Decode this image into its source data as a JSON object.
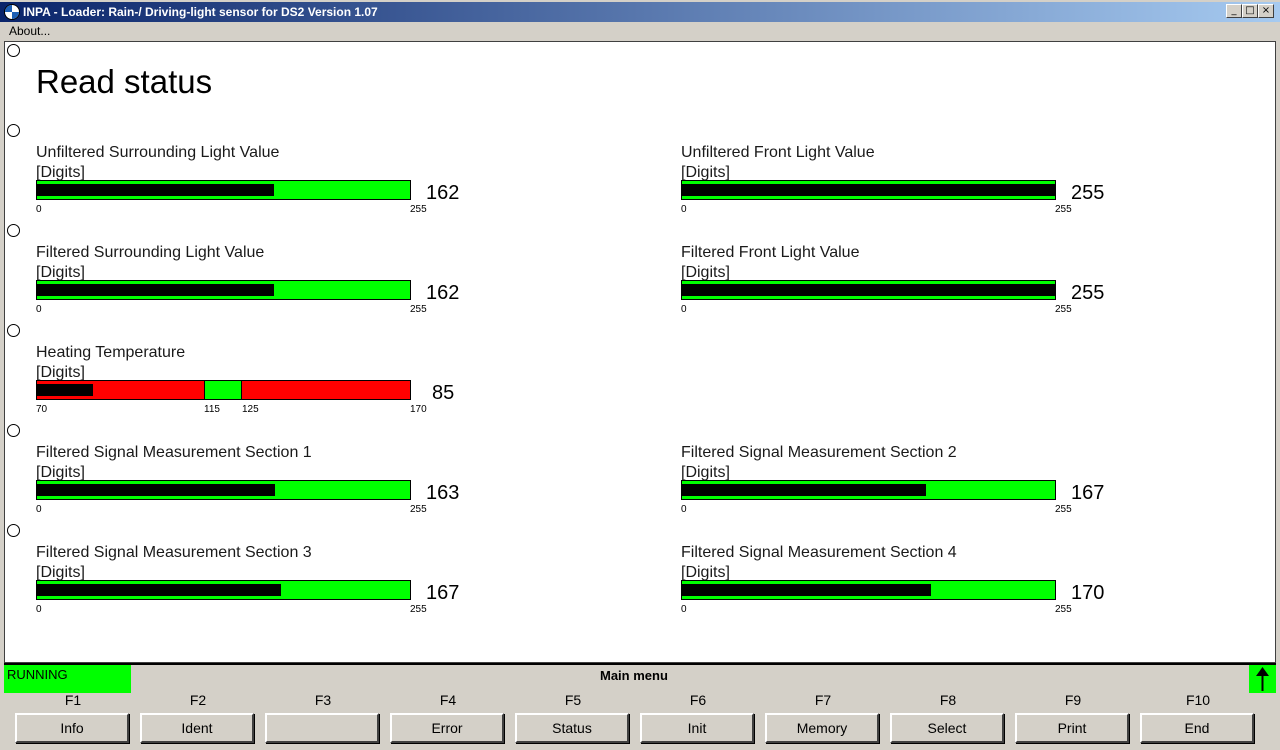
{
  "window": {
    "title": "INPA - Loader:  Rain-/ Driving-light sensor for DS2 Version 1.07",
    "minimize_glyph": "_",
    "maximize_glyph": "□",
    "close_glyph": "×"
  },
  "menu": {
    "about": "About..."
  },
  "page": {
    "title": "Read status"
  },
  "gauges": [
    {
      "label": "Unfiltered Surrounding Light Value",
      "unit": "[Digits]",
      "value": "162",
      "min": "0",
      "max": "255",
      "fraction": 0.635
    },
    {
      "label": "Unfiltered Front Light Value",
      "unit": "[Digits]",
      "value": "255",
      "min": "0",
      "max": "255",
      "fraction": 1.0
    },
    {
      "label": "Filtered Surrounding Light Value",
      "unit": "[Digits]",
      "value": "162",
      "min": "0",
      "max": "255",
      "fraction": 0.635
    },
    {
      "label": "Filtered Front Light Value",
      "unit": "[Digits]",
      "value": "255",
      "min": "0",
      "max": "255",
      "fraction": 1.0
    },
    {
      "label": "Heating Temperature",
      "unit": "[Digits]",
      "value": "85",
      "min": "70",
      "max": "170",
      "tick1": "115",
      "tick2": "125",
      "fraction": 0.15
    },
    {
      "label": "Filtered Signal Measurement Section 1",
      "unit": "[Digits]",
      "value": "163",
      "min": "0",
      "max": "255",
      "fraction": 0.639
    },
    {
      "label": "Filtered Signal Measurement Section 2",
      "unit": "[Digits]",
      "value": "167",
      "min": "0",
      "max": "255",
      "fraction": 0.655
    },
    {
      "label": "Filtered Signal Measurement Section 3",
      "unit": "[Digits]",
      "value": "167",
      "min": "0",
      "max": "255",
      "fraction": 0.655
    },
    {
      "label": "Filtered Signal Measurement Section 4",
      "unit": "[Digits]",
      "value": "170",
      "min": "0",
      "max": "255",
      "fraction": 0.667
    }
  ],
  "status": {
    "state": "RUNNING",
    "menu_name": "Main menu"
  },
  "fkeys": [
    {
      "key": "F1",
      "label": "Info"
    },
    {
      "key": "F2",
      "label": "Ident"
    },
    {
      "key": "F3",
      "label": ""
    },
    {
      "key": "F4",
      "label": "Error"
    },
    {
      "key": "F5",
      "label": "Status"
    },
    {
      "key": "F6",
      "label": "Init"
    },
    {
      "key": "F7",
      "label": "Memory"
    },
    {
      "key": "F8",
      "label": "Select"
    },
    {
      "key": "F9",
      "label": "Print"
    },
    {
      "key": "F10",
      "label": "End"
    }
  ],
  "colors": {
    "ok": "#00ff00",
    "out_of_range": "#ff0000",
    "fill": "#000000",
    "titlebar": "#0a246a"
  }
}
